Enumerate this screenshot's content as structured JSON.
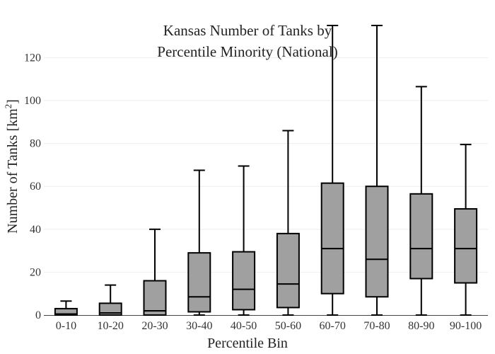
{
  "chart_data": {
    "type": "box",
    "title_lines": [
      "Kansas Number of Tanks by",
      "Percentile Minority (National)"
    ],
    "xlabel": "Percentile Bin",
    "ylabel": "Number of Tanks  [km",
    "ylabel_sup": "2",
    "ylabel_close": "]",
    "ylim": [
      0,
      135
    ],
    "yticks": [
      0,
      20,
      40,
      60,
      80,
      100,
      120
    ],
    "grid": true,
    "box_color": "#a0a0a0",
    "categories": [
      "0-10",
      "10-20",
      "20-30",
      "30-40",
      "40-50",
      "50-60",
      "60-70",
      "70-80",
      "80-90",
      "90-100"
    ],
    "boxes": [
      {
        "min": 0,
        "q1": 0,
        "median": 0.5,
        "q3": 3,
        "max": 6.5
      },
      {
        "min": 0,
        "q1": 0,
        "median": 1,
        "q3": 5.5,
        "max": 14
      },
      {
        "min": 0,
        "q1": 0,
        "median": 2,
        "q3": 16,
        "max": 40
      },
      {
        "min": 0,
        "q1": 1.5,
        "median": 8.5,
        "q3": 29,
        "max": 67.5
      },
      {
        "min": 0,
        "q1": 2.5,
        "median": 12,
        "q3": 29.5,
        "max": 69.5
      },
      {
        "min": 0,
        "q1": 3.5,
        "median": 14.5,
        "q3": 38,
        "max": 86
      },
      {
        "min": 0,
        "q1": 10,
        "median": 31,
        "q3": 61.5,
        "max": 135
      },
      {
        "min": 0,
        "q1": 8.5,
        "median": 26,
        "q3": 60,
        "max": 135
      },
      {
        "min": 0,
        "q1": 17,
        "median": 31,
        "q3": 56.5,
        "max": 106.5
      },
      {
        "min": 0,
        "q1": 15,
        "median": 31,
        "q3": 49.5,
        "max": 79.5
      }
    ]
  }
}
